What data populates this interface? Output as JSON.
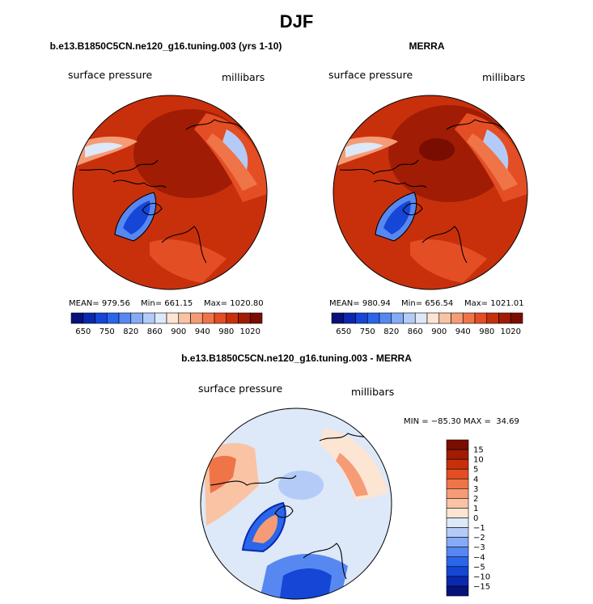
{
  "figure": {
    "season_title": "DJF",
    "colors": {
      "land_outline": "#000000",
      "background": "#ffffff"
    }
  },
  "chart_data": [
    {
      "type": "heatmap",
      "projection": "north-polar-stereographic",
      "title": "b.e13.B1850C5CN.ne120_g16.tuning.003 (yrs 1-10)",
      "left_label": "surface pressure",
      "right_label": "millibars",
      "stats": {
        "mean_text": "MEAN= 979.56",
        "min_text": "Min= 661.15",
        "max_text": "Max= 1020.80",
        "mean": 979.56,
        "min": 661.15,
        "max": 1020.8
      },
      "colorbar": {
        "orientation": "horizontal",
        "levels": [
          650,
          700,
          750,
          800,
          820,
          840,
          860,
          880,
          900,
          920,
          940,
          960,
          980,
          1000,
          1020
        ],
        "tick_labels": [
          "650",
          "750",
          "820",
          "860",
          "900",
          "940",
          "980",
          "1020"
        ],
        "colors": [
          "#08107a",
          "#0a28b0",
          "#1546d6",
          "#2a66ea",
          "#5788f2",
          "#85aaf6",
          "#b4cbf8",
          "#dde8f8",
          "#fde5d4",
          "#f9c3a4",
          "#f59c76",
          "#ef7549",
          "#e44e24",
          "#c8300c",
          "#a11c04",
          "#7a0d01"
        ]
      }
    },
    {
      "type": "heatmap",
      "projection": "north-polar-stereographic",
      "title": "MERRA",
      "left_label": "surface pressure",
      "right_label": "millibars",
      "stats": {
        "mean_text": "MEAN= 980.94",
        "min_text": "Min= 656.54",
        "max_text": "Max= 1021.01",
        "mean": 980.94,
        "min": 656.54,
        "max": 1021.01
      },
      "colorbar": {
        "orientation": "horizontal",
        "levels": [
          650,
          700,
          750,
          800,
          820,
          840,
          860,
          880,
          900,
          920,
          940,
          960,
          980,
          1000,
          1020
        ],
        "tick_labels": [
          "650",
          "750",
          "820",
          "860",
          "900",
          "940",
          "980",
          "1020"
        ],
        "colors": [
          "#08107a",
          "#0a28b0",
          "#1546d6",
          "#2a66ea",
          "#5788f2",
          "#85aaf6",
          "#b4cbf8",
          "#dde8f8",
          "#fde5d4",
          "#f9c3a4",
          "#f59c76",
          "#ef7549",
          "#e44e24",
          "#c8300c",
          "#a11c04",
          "#7a0d01"
        ]
      }
    },
    {
      "type": "heatmap",
      "projection": "north-polar-stereographic",
      "title": "b.e13.B1850C5CN.ne120_g16.tuning.003 - MERRA",
      "left_label": "surface pressure",
      "right_label": "millibars",
      "stats": {
        "text": "MIN = −85.30 MAX =  34.69",
        "min": -85.3,
        "max": 34.69
      },
      "colorbar": {
        "orientation": "vertical",
        "levels": [
          -15,
          -10,
          -5,
          -4,
          -3,
          -2,
          -1,
          0,
          1,
          2,
          3,
          4,
          5,
          10,
          15
        ],
        "tick_labels": [
          "15",
          "10",
          "5",
          "4",
          "3",
          "2",
          "1",
          "0",
          "−1",
          "−2",
          "−3",
          "−4",
          "−5",
          "−10",
          "−15"
        ],
        "colors": [
          "#08107a",
          "#0a28b0",
          "#1546d6",
          "#2a66ea",
          "#5788f2",
          "#85aaf6",
          "#b4cbf8",
          "#dde8f8",
          "#fde5d4",
          "#f9c3a4",
          "#f59c76",
          "#ef7549",
          "#e44e24",
          "#c8300c",
          "#a11c04",
          "#7a0d01"
        ]
      }
    }
  ]
}
